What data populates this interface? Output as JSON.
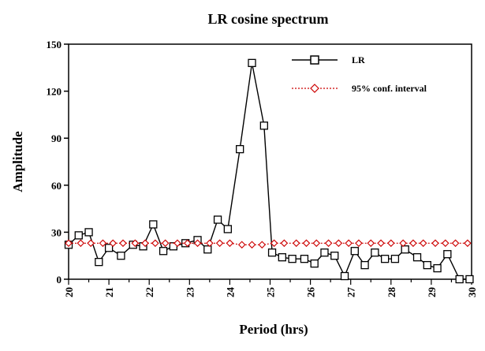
{
  "chart_data": {
    "type": "line",
    "title": "LR cosine spectrum",
    "xlabel": "Period (hrs)",
    "ylabel": "Amplitude",
    "xlim": [
      20,
      30
    ],
    "ylim": [
      0,
      150
    ],
    "xticks": [
      20,
      21,
      22,
      23,
      24,
      25,
      26,
      27,
      28,
      29,
      30
    ],
    "yticks": [
      0,
      30,
      60,
      90,
      120,
      150
    ],
    "grid": false,
    "legend_position": "top-right",
    "series": [
      {
        "name": "LR",
        "color": "#000000",
        "marker": "square",
        "x": [
          20.0,
          20.25,
          20.5,
          20.75,
          21.0,
          21.3,
          21.6,
          21.85,
          22.1,
          22.35,
          22.6,
          22.9,
          23.2,
          23.45,
          23.7,
          23.95,
          24.25,
          24.55,
          24.85,
          25.05,
          25.3,
          25.55,
          25.85,
          26.1,
          26.35,
          26.6,
          26.85,
          27.1,
          27.35,
          27.6,
          27.85,
          28.1,
          28.35,
          28.65,
          28.9,
          29.15,
          29.4,
          29.7,
          29.95
        ],
        "y": [
          22,
          28,
          30,
          11,
          20,
          15,
          22,
          21,
          35,
          18,
          21,
          23,
          25,
          19,
          38,
          32,
          83,
          138,
          98,
          17,
          14,
          13,
          13,
          10,
          17,
          15,
          2,
          18,
          9,
          17,
          13,
          13,
          19,
          14,
          9,
          7,
          16,
          0,
          0
        ]
      },
      {
        "name": "95% conf. interval",
        "color": "#cc0000",
        "marker": "diamond",
        "linestyle": "dotted",
        "x": [
          20.0,
          20.3,
          20.55,
          20.85,
          21.1,
          21.35,
          21.65,
          21.9,
          22.15,
          22.4,
          22.7,
          22.95,
          23.2,
          23.5,
          23.75,
          24.0,
          24.3,
          24.55,
          24.8,
          25.1,
          25.35,
          25.65,
          25.9,
          26.15,
          26.45,
          26.7,
          26.95,
          27.2,
          27.5,
          27.75,
          28.0,
          28.3,
          28.55,
          28.8,
          29.1,
          29.35,
          29.6,
          29.9
        ],
        "y": [
          23,
          23,
          23,
          23,
          23,
          23,
          23,
          23,
          23,
          23,
          23,
          23,
          23,
          23,
          23,
          23,
          22,
          22,
          22,
          23,
          23,
          23,
          23,
          23,
          23,
          23,
          23,
          23,
          23,
          23,
          23,
          23,
          23,
          23,
          23,
          23,
          23,
          23
        ]
      }
    ]
  }
}
